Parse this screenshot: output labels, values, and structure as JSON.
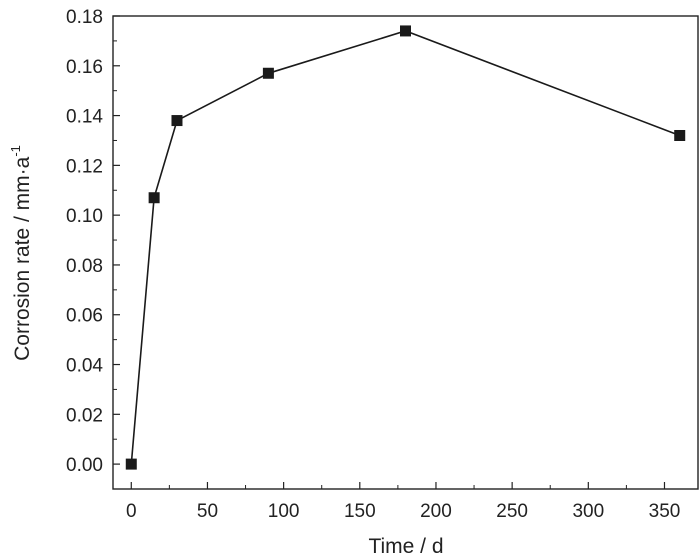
{
  "chart_data": {
    "type": "line",
    "xlabel": "Time / d",
    "ylabel": {
      "main": "Corrosion rate / mm·a",
      "superscript": "-1"
    },
    "xlim": [
      -12,
      372
    ],
    "ylim": [
      -0.01,
      0.18
    ],
    "x_ticks": [
      0,
      50,
      100,
      150,
      200,
      250,
      300,
      350
    ],
    "x_tick_labels": [
      "0",
      "50",
      "100",
      "150",
      "200",
      "250",
      "300",
      "350"
    ],
    "y_ticks": [
      0.0,
      0.02,
      0.04,
      0.06,
      0.08,
      0.1,
      0.12,
      0.14,
      0.16,
      0.18
    ],
    "y_tick_labels": [
      "0.00",
      "0.02",
      "0.04",
      "0.06",
      "0.08",
      "0.10",
      "0.12",
      "0.14",
      "0.16",
      "0.18"
    ],
    "grid": false,
    "marker": "square",
    "series": [
      {
        "x": [
          0,
          15,
          30,
          90,
          180,
          360
        ],
        "y": [
          0.0,
          0.107,
          0.138,
          0.157,
          0.174,
          0.132
        ]
      }
    ]
  },
  "colors": {
    "series": "#1a1a1a",
    "axis": "#222222",
    "background": "#ffffff"
  }
}
